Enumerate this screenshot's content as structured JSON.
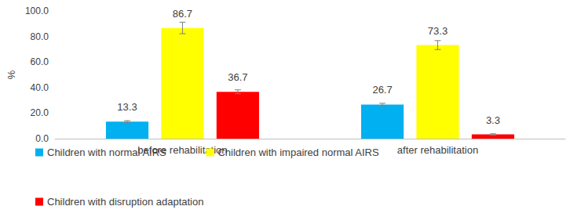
{
  "chart_data": {
    "type": "bar",
    "y_label": "%",
    "categories": [
      "before rehabilitation",
      "after rehabilitation"
    ],
    "series": [
      {
        "name": "Children with normal AIRS",
        "color": "#00b0f0",
        "values": [
          13.3,
          26.7
        ],
        "errors": [
          0.8,
          1.0
        ]
      },
      {
        "name": "Children with impaired normal AIRS",
        "color": "#ffff00",
        "values": [
          86.7,
          73.3
        ],
        "errors": [
          4.5,
          3.5
        ]
      },
      {
        "name": "Children with disruption adaptation",
        "color": "#ff0000",
        "values": [
          36.7,
          3.3
        ],
        "errors": [
          1.5,
          0.5
        ]
      }
    ],
    "ylim": [
      0,
      100
    ],
    "yticks": [
      {
        "value": 0,
        "label": "0.0"
      },
      {
        "value": 20,
        "label": "20.0"
      },
      {
        "value": 40,
        "label": "40.0"
      },
      {
        "value": 60,
        "label": "60.0"
      },
      {
        "value": 80,
        "label": "80.0"
      },
      {
        "value": 100,
        "label": "100.0"
      }
    ],
    "grid": false,
    "legend": "bottom",
    "data_labels": true
  }
}
